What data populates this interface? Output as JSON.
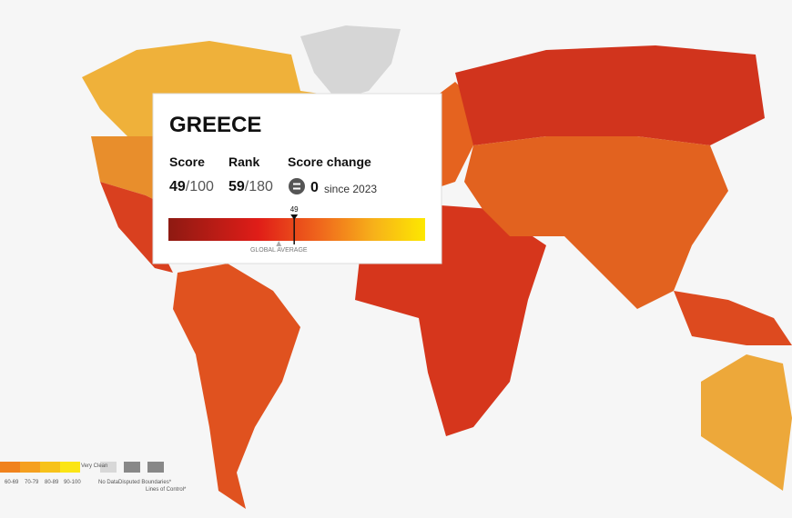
{
  "tooltip": {
    "country": "GREECE",
    "score_label": "Score",
    "score": 49,
    "score_max": "/100",
    "rank_label": "Rank",
    "rank": 59,
    "rank_max": "/180",
    "change_label": "Score change",
    "change": 0,
    "change_since": "since 2023",
    "global_average": 43,
    "global_average_label": "GLOBAL AVERAGE"
  },
  "legend": {
    "ranges": [
      "60-69",
      "70-79",
      "80-89",
      "90-100"
    ],
    "very_clean": "Very Clean",
    "no_data": "No Data",
    "disputed": "Disputed Boundaries*",
    "lines_of_control": "Lines of Control*"
  }
}
